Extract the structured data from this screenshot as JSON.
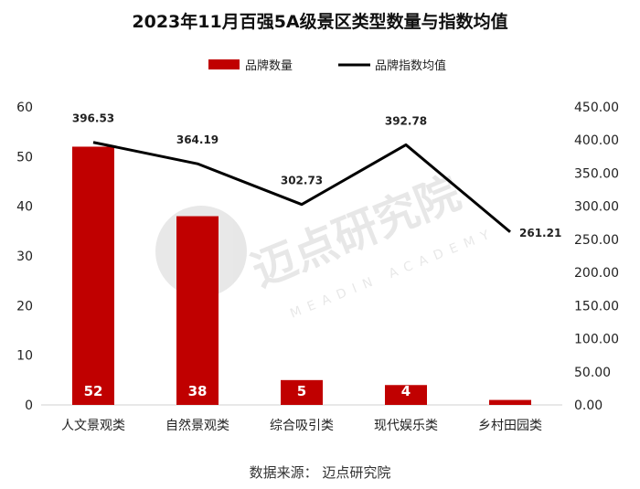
{
  "chart_data": {
    "type": "bar+line",
    "title": "2023年11月百强5A级景区类型数量与指数均值",
    "categories": [
      "人文景观类",
      "自然景观类",
      "综合吸引类",
      "现代娱乐类",
      "乡村田园类"
    ],
    "series": [
      {
        "name": "品牌数量",
        "type": "bar",
        "axis": "left",
        "color": "#c00000",
        "values": [
          52,
          38,
          5,
          4,
          1
        ]
      },
      {
        "name": "品牌指数均值",
        "type": "line",
        "axis": "right",
        "color": "#000000",
        "values": [
          396.53,
          364.19,
          302.73,
          392.78,
          261.21
        ]
      }
    ],
    "y_left": {
      "range": [
        0,
        60
      ],
      "ticks": [
        "0",
        "10",
        "20",
        "30",
        "40",
        "50",
        "60"
      ]
    },
    "y_right": {
      "range": [
        0,
        450
      ],
      "ticks": [
        "0.00",
        "50.00",
        "100.00",
        "150.00",
        "200.00",
        "250.00",
        "300.00",
        "350.00",
        "400.00",
        "450.00"
      ]
    },
    "bar_labels": [
      "52",
      "38",
      "5",
      "4",
      "1"
    ],
    "line_labels": [
      "396.53",
      "364.19",
      "302.73",
      "392.78",
      "261.21"
    ],
    "legend_position": "top-center",
    "grid": false
  },
  "source": "数据来源：  迈点研究院",
  "watermark": {
    "cn": "迈点研究院",
    "en": "MEADIN ACADEMY"
  }
}
